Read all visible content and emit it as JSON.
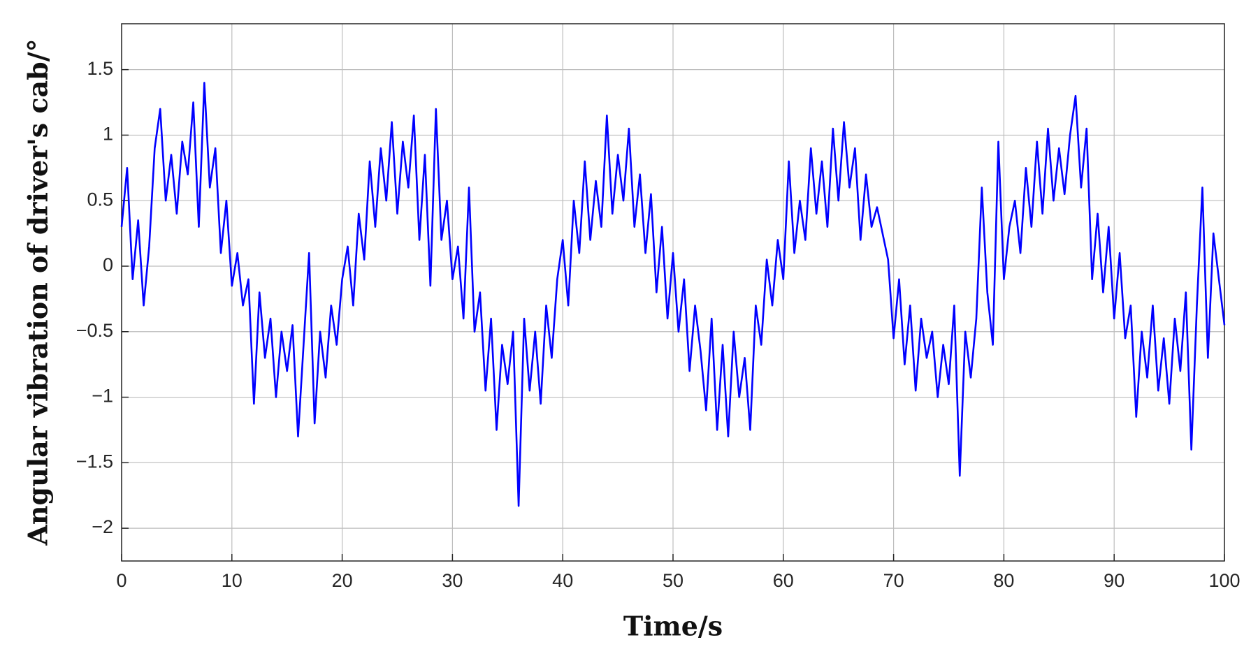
{
  "chart_data": {
    "type": "line",
    "xlabel": "Time/s",
    "ylabel": "Angular vibration of driver's cab/°",
    "color": "#0000ff",
    "grid": true,
    "xlim": [
      0,
      100
    ],
    "xticks": [
      0,
      10,
      20,
      30,
      40,
      50,
      60,
      70,
      80,
      90,
      100
    ],
    "ylim": [
      -2.25,
      1.85
    ],
    "yticks": [
      {
        "value": -2,
        "label": "−2"
      },
      {
        "value": -1.5,
        "label": "−1.5"
      },
      {
        "value": -1,
        "label": "−1"
      },
      {
        "value": -0.5,
        "label": "−0.5"
      },
      0,
      0.5,
      1,
      1.5
    ],
    "x": [
      0,
      0.5,
      1,
      1.5,
      2,
      2.5,
      3,
      3.5,
      4,
      4.5,
      5,
      5.5,
      6,
      6.5,
      7,
      7.5,
      8,
      8.5,
      9,
      9.5,
      10,
      10.5,
      11,
      11.5,
      12,
      12.5,
      13,
      13.5,
      14,
      14.5,
      15,
      15.5,
      16,
      16.5,
      17,
      17.5,
      18,
      18.5,
      19,
      19.5,
      20,
      20.5,
      21,
      21.5,
      22,
      22.5,
      23,
      23.5,
      24,
      24.5,
      25,
      25.5,
      26,
      26.5,
      27,
      27.5,
      28,
      28.5,
      29,
      29.5,
      30,
      30.5,
      31,
      31.5,
      32,
      32.5,
      33,
      33.5,
      34,
      34.5,
      35,
      35.5,
      36,
      36.5,
      37,
      37.5,
      38,
      38.5,
      39,
      39.5,
      40,
      40.5,
      41,
      41.5,
      42,
      42.5,
      43,
      43.5,
      44,
      44.5,
      45,
      45.5,
      46,
      46.5,
      47,
      47.5,
      48,
      48.5,
      49,
      49.5,
      50,
      50.5,
      51,
      51.5,
      52,
      52.5,
      53,
      53.5,
      54,
      54.5,
      55,
      55.5,
      56,
      56.5,
      57,
      57.5,
      58,
      58.5,
      59,
      59.5,
      60,
      60.5,
      61,
      61.5,
      62,
      62.5,
      63,
      63.5,
      64,
      64.5,
      65,
      65.5,
      66,
      66.5,
      67,
      67.5,
      68,
      68.5,
      69,
      69.5,
      70,
      70.5,
      71,
      71.5,
      72,
      72.5,
      73,
      73.5,
      74,
      74.5,
      75,
      75.5,
      76,
      76.5,
      77,
      77.5,
      78,
      78.5,
      79,
      79.5,
      80,
      80.5,
      81,
      81.5,
      82,
      82.5,
      83,
      83.5,
      84,
      84.5,
      85,
      85.5,
      86,
      86.5,
      87,
      87.5,
      88,
      88.5,
      89,
      89.5,
      90,
      90.5,
      91,
      91.5,
      92,
      92.5,
      93,
      93.5,
      94,
      94.5,
      95,
      95.5,
      96,
      96.5,
      97,
      97.5,
      98,
      98.5,
      99,
      99.5,
      100
    ],
    "values": [
      0.3,
      0.75,
      -0.1,
      0.35,
      -0.3,
      0.15,
      0.9,
      1.2,
      0.5,
      0.85,
      0.4,
      0.95,
      0.7,
      1.25,
      0.3,
      1.4,
      0.6,
      0.9,
      0.1,
      0.5,
      -0.15,
      0.1,
      -0.3,
      -0.1,
      -1.05,
      -0.2,
      -0.7,
      -0.4,
      -1.0,
      -0.5,
      -0.8,
      -0.45,
      -1.3,
      -0.6,
      0.1,
      -1.2,
      -0.5,
      -0.85,
      -0.3,
      -0.6,
      -0.1,
      0.15,
      -0.3,
      0.4,
      0.05,
      0.8,
      0.3,
      0.9,
      0.5,
      1.1,
      0.4,
      0.95,
      0.6,
      1.15,
      0.2,
      0.85,
      -0.15,
      1.2,
      0.2,
      0.5,
      -0.1,
      0.15,
      -0.4,
      0.6,
      -0.5,
      -0.2,
      -0.95,
      -0.4,
      -1.25,
      -0.6,
      -0.9,
      -0.5,
      -1.83,
      -0.4,
      -0.95,
      -0.5,
      -1.05,
      -0.3,
      -0.7,
      -0.1,
      0.2,
      -0.3,
      0.5,
      0.1,
      0.8,
      0.2,
      0.65,
      0.3,
      1.15,
      0.4,
      0.85,
      0.5,
      1.05,
      0.3,
      0.7,
      0.1,
      0.55,
      -0.2,
      0.3,
      -0.4,
      0.1,
      -0.5,
      -0.1,
      -0.8,
      -0.3,
      -0.65,
      -1.1,
      -0.4,
      -1.25,
      -0.6,
      -1.3,
      -0.5,
      -1.0,
      -0.7,
      -1.25,
      -0.3,
      -0.6,
      0.05,
      -0.3,
      0.2,
      -0.1,
      0.8,
      0.1,
      0.5,
      0.2,
      0.9,
      0.4,
      0.8,
      0.3,
      1.05,
      0.5,
      1.1,
      0.6,
      0.9,
      0.2,
      0.7,
      0.3,
      0.45,
      0.25,
      0.05,
      -0.55,
      -0.1,
      -0.75,
      -0.3,
      -0.95,
      -0.4,
      -0.7,
      -0.5,
      -1.0,
      -0.6,
      -0.9,
      -0.3,
      -1.6,
      -0.5,
      -0.85,
      -0.4,
      0.6,
      -0.2,
      -0.6,
      0.95,
      -0.1,
      0.3,
      0.5,
      0.1,
      0.75,
      0.3,
      0.95,
      0.4,
      1.05,
      0.5,
      0.9,
      0.55,
      1.0,
      1.3,
      0.6,
      1.05,
      -0.1,
      0.4,
      -0.2,
      0.3,
      -0.4,
      0.1,
      -0.55,
      -0.3,
      -1.15,
      -0.5,
      -0.85,
      -0.3,
      -0.95,
      -0.55,
      -1.05,
      -0.4,
      -0.8,
      -0.2,
      -1.4,
      -0.3,
      0.6,
      -0.7,
      0.25,
      -0.1,
      -0.45
    ]
  }
}
